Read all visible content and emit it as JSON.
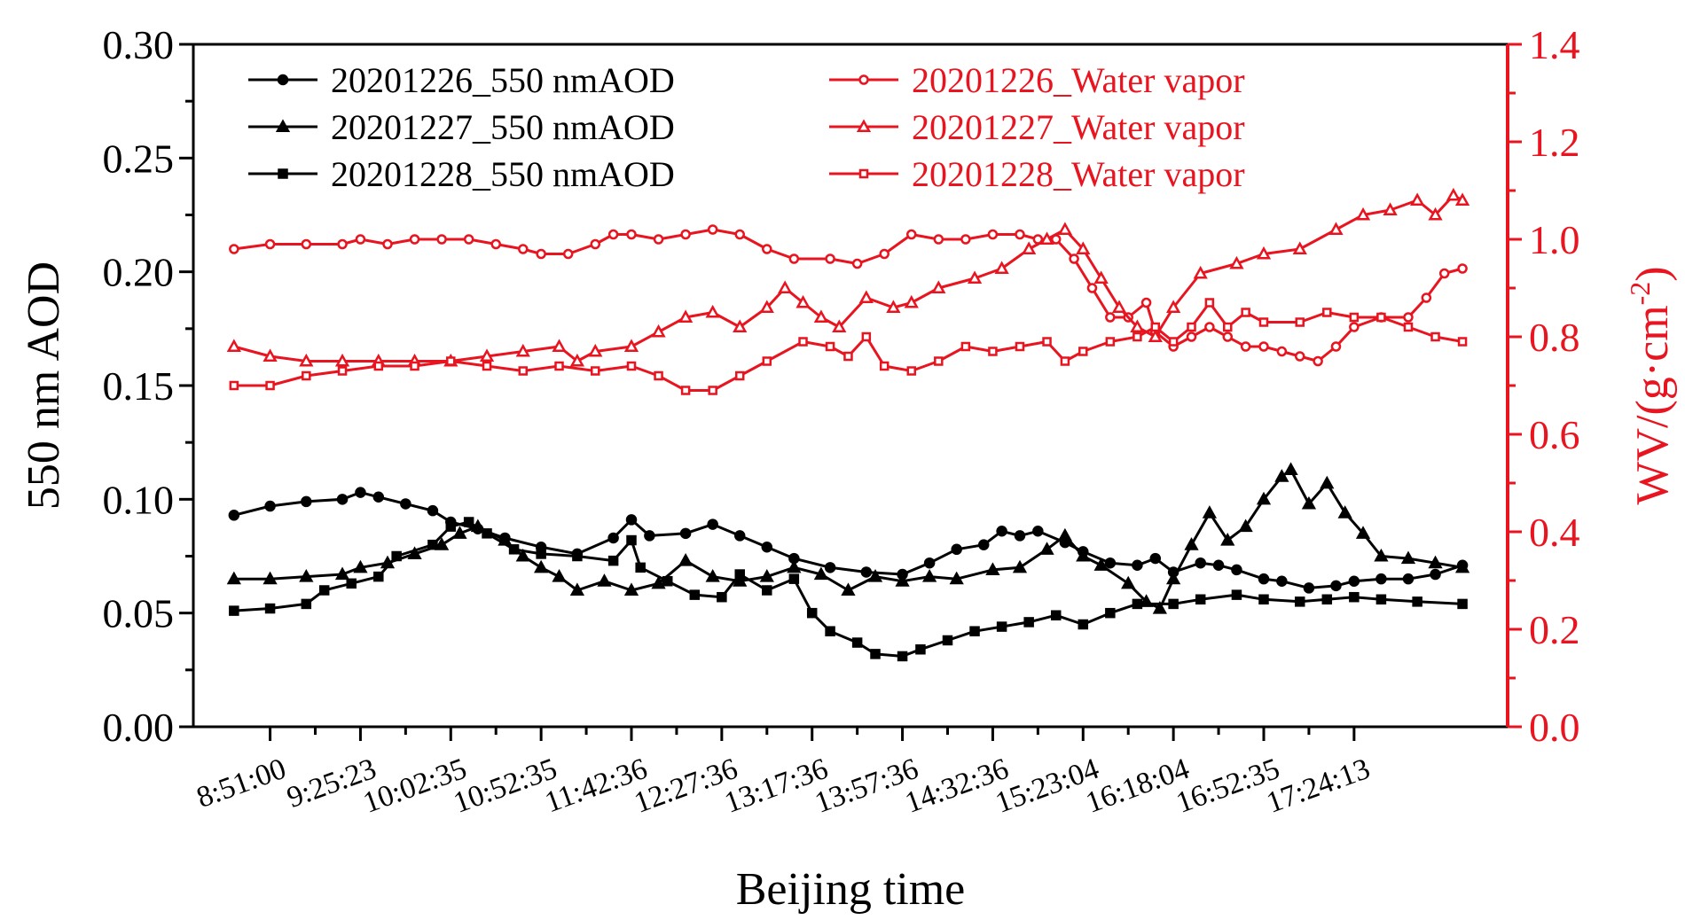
{
  "chart_data": {
    "type": "line",
    "title": "",
    "xlabel": "Beijing time",
    "ylabel_left": "550 nm AOD",
    "ylabel_right_prefix": "WV/(g",
    "ylabel_right_dot": "·",
    "ylabel_right_mid": "cm",
    "ylabel_right_sup": "-2",
    "ylabel_right_suffix": ")",
    "x_tick_labels": [
      "8:51:00",
      "9:25:23",
      "10:02:35",
      "10:52:35",
      "11:42:36",
      "12:27:36",
      "13:17:36",
      "13:57:36",
      "14:32:36",
      "15:23:04",
      "16:18:04",
      "16:52:35",
      "17:24:13"
    ],
    "y_left_ticks": [
      "0.00",
      "0.05",
      "0.10",
      "0.15",
      "0.20",
      "0.25",
      "0.30"
    ],
    "y_right_ticks": [
      "0.0",
      "0.2",
      "0.4",
      "0.6",
      "0.8",
      "1.0",
      "1.2",
      "1.4"
    ],
    "ylim_left": [
      0,
      0.3
    ],
    "ylim_right": [
      0,
      1.4
    ],
    "xlim": [
      -0.85,
      13.7
    ],
    "legend_position": "top",
    "colors": {
      "aod": "#000000",
      "wv": "#e8141f"
    },
    "series": [
      {
        "name": "20201226_550 nmAOD",
        "axis": "left",
        "marker": "circle",
        "filled": true,
        "color": "#000000",
        "points": [
          [
            -0.4,
            0.093
          ],
          [
            0,
            0.097
          ],
          [
            0.4,
            0.099
          ],
          [
            0.8,
            0.1
          ],
          [
            1,
            0.103
          ],
          [
            1.2,
            0.101
          ],
          [
            1.5,
            0.098
          ],
          [
            1.8,
            0.095
          ],
          [
            2,
            0.09
          ],
          [
            2.3,
            0.087
          ],
          [
            2.6,
            0.083
          ],
          [
            3,
            0.079
          ],
          [
            3.4,
            0.076
          ],
          [
            3.8,
            0.083
          ],
          [
            4,
            0.091
          ],
          [
            4.2,
            0.084
          ],
          [
            4.6,
            0.085
          ],
          [
            4.9,
            0.089
          ],
          [
            5.2,
            0.084
          ],
          [
            5.5,
            0.079
          ],
          [
            5.8,
            0.074
          ],
          [
            6.2,
            0.07
          ],
          [
            6.6,
            0.068
          ],
          [
            7,
            0.067
          ],
          [
            7.3,
            0.072
          ],
          [
            7.6,
            0.078
          ],
          [
            7.9,
            0.08
          ],
          [
            8.1,
            0.086
          ],
          [
            8.3,
            0.084
          ],
          [
            8.5,
            0.086
          ],
          [
            8.8,
            0.081
          ],
          [
            9,
            0.077
          ],
          [
            9.3,
            0.072
          ],
          [
            9.6,
            0.071
          ],
          [
            9.8,
            0.074
          ],
          [
            10,
            0.068
          ],
          [
            10.3,
            0.072
          ],
          [
            10.5,
            0.071
          ],
          [
            10.7,
            0.069
          ],
          [
            11,
            0.065
          ],
          [
            11.2,
            0.064
          ],
          [
            11.5,
            0.061
          ],
          [
            11.8,
            0.062
          ],
          [
            12,
            0.064
          ],
          [
            12.3,
            0.065
          ],
          [
            12.6,
            0.065
          ],
          [
            12.9,
            0.067
          ],
          [
            13.2,
            0.071
          ]
        ]
      },
      {
        "name": "20201227_550 nmAOD",
        "axis": "left",
        "marker": "triangle",
        "filled": true,
        "color": "#000000",
        "points": [
          [
            -0.4,
            0.065
          ],
          [
            0,
            0.065
          ],
          [
            0.4,
            0.066
          ],
          [
            0.8,
            0.067
          ],
          [
            1,
            0.07
          ],
          [
            1.3,
            0.072
          ],
          [
            1.6,
            0.076
          ],
          [
            1.9,
            0.08
          ],
          [
            2.1,
            0.085
          ],
          [
            2.3,
            0.088
          ],
          [
            2.6,
            0.082
          ],
          [
            2.8,
            0.075
          ],
          [
            3,
            0.07
          ],
          [
            3.2,
            0.066
          ],
          [
            3.4,
            0.06
          ],
          [
            3.7,
            0.064
          ],
          [
            4,
            0.06
          ],
          [
            4.3,
            0.063
          ],
          [
            4.6,
            0.073
          ],
          [
            4.9,
            0.066
          ],
          [
            5.2,
            0.064
          ],
          [
            5.5,
            0.066
          ],
          [
            5.8,
            0.07
          ],
          [
            6.1,
            0.067
          ],
          [
            6.4,
            0.06
          ],
          [
            6.7,
            0.066
          ],
          [
            7,
            0.064
          ],
          [
            7.3,
            0.066
          ],
          [
            7.6,
            0.065
          ],
          [
            8,
            0.069
          ],
          [
            8.3,
            0.07
          ],
          [
            8.6,
            0.078
          ],
          [
            8.8,
            0.084
          ],
          [
            9,
            0.075
          ],
          [
            9.2,
            0.071
          ],
          [
            9.5,
            0.063
          ],
          [
            9.7,
            0.055
          ],
          [
            9.85,
            0.052
          ],
          [
            10,
            0.065
          ],
          [
            10.2,
            0.08
          ],
          [
            10.4,
            0.094
          ],
          [
            10.6,
            0.082
          ],
          [
            10.8,
            0.088
          ],
          [
            11,
            0.1
          ],
          [
            11.2,
            0.11
          ],
          [
            11.3,
            0.113
          ],
          [
            11.5,
            0.098
          ],
          [
            11.7,
            0.107
          ],
          [
            11.9,
            0.094
          ],
          [
            12.1,
            0.085
          ],
          [
            12.3,
            0.075
          ],
          [
            12.6,
            0.074
          ],
          [
            12.9,
            0.072
          ],
          [
            13.2,
            0.07
          ]
        ]
      },
      {
        "name": "20201228_550 nmAOD",
        "axis": "left",
        "marker": "square",
        "filled": true,
        "color": "#000000",
        "points": [
          [
            -0.4,
            0.051
          ],
          [
            0,
            0.052
          ],
          [
            0.4,
            0.054
          ],
          [
            0.6,
            0.06
          ],
          [
            0.9,
            0.063
          ],
          [
            1.2,
            0.066
          ],
          [
            1.4,
            0.075
          ],
          [
            1.8,
            0.08
          ],
          [
            2,
            0.088
          ],
          [
            2.2,
            0.09
          ],
          [
            2.4,
            0.085
          ],
          [
            2.7,
            0.078
          ],
          [
            3,
            0.076
          ],
          [
            3.4,
            0.075
          ],
          [
            3.8,
            0.073
          ],
          [
            4,
            0.082
          ],
          [
            4.1,
            0.07
          ],
          [
            4.4,
            0.064
          ],
          [
            4.7,
            0.058
          ],
          [
            5,
            0.057
          ],
          [
            5.2,
            0.067
          ],
          [
            5.5,
            0.06
          ],
          [
            5.8,
            0.065
          ],
          [
            6,
            0.05
          ],
          [
            6.2,
            0.042
          ],
          [
            6.5,
            0.037
          ],
          [
            6.7,
            0.032
          ],
          [
            7,
            0.031
          ],
          [
            7.2,
            0.034
          ],
          [
            7.5,
            0.038
          ],
          [
            7.8,
            0.042
          ],
          [
            8.1,
            0.044
          ],
          [
            8.4,
            0.046
          ],
          [
            8.7,
            0.049
          ],
          [
            9,
            0.045
          ],
          [
            9.3,
            0.05
          ],
          [
            9.6,
            0.054
          ],
          [
            10,
            0.054
          ],
          [
            10.3,
            0.056
          ],
          [
            10.7,
            0.058
          ],
          [
            11,
            0.056
          ],
          [
            11.4,
            0.055
          ],
          [
            11.7,
            0.056
          ],
          [
            12,
            0.057
          ],
          [
            12.3,
            0.056
          ],
          [
            12.7,
            0.055
          ],
          [
            13.2,
            0.054
          ]
        ]
      },
      {
        "name": "20201226_Water vapor",
        "axis": "right",
        "marker": "circle",
        "filled": false,
        "color": "#e8141f",
        "points": [
          [
            -0.4,
            0.98
          ],
          [
            0,
            0.99
          ],
          [
            0.4,
            0.99
          ],
          [
            0.8,
            0.99
          ],
          [
            1,
            1.0
          ],
          [
            1.3,
            0.99
          ],
          [
            1.6,
            1.0
          ],
          [
            1.9,
            1.0
          ],
          [
            2.2,
            1.0
          ],
          [
            2.5,
            0.99
          ],
          [
            2.8,
            0.98
          ],
          [
            3,
            0.97
          ],
          [
            3.3,
            0.97
          ],
          [
            3.6,
            0.99
          ],
          [
            3.8,
            1.01
          ],
          [
            4,
            1.01
          ],
          [
            4.3,
            1.0
          ],
          [
            4.6,
            1.01
          ],
          [
            4.9,
            1.02
          ],
          [
            5.2,
            1.01
          ],
          [
            5.5,
            0.98
          ],
          [
            5.8,
            0.96
          ],
          [
            6.2,
            0.96
          ],
          [
            6.5,
            0.95
          ],
          [
            6.8,
            0.97
          ],
          [
            7.1,
            1.01
          ],
          [
            7.4,
            1.0
          ],
          [
            7.7,
            1.0
          ],
          [
            8,
            1.01
          ],
          [
            8.3,
            1.01
          ],
          [
            8.5,
            1.0
          ],
          [
            8.7,
            1.0
          ],
          [
            8.9,
            0.96
          ],
          [
            9.1,
            0.9
          ],
          [
            9.3,
            0.84
          ],
          [
            9.5,
            0.84
          ],
          [
            9.7,
            0.87
          ],
          [
            9.8,
            0.81
          ],
          [
            10,
            0.78
          ],
          [
            10.2,
            0.8
          ],
          [
            10.4,
            0.82
          ],
          [
            10.6,
            0.8
          ],
          [
            10.8,
            0.78
          ],
          [
            11,
            0.78
          ],
          [
            11.2,
            0.77
          ],
          [
            11.4,
            0.76
          ],
          [
            11.6,
            0.75
          ],
          [
            11.8,
            0.78
          ],
          [
            12,
            0.82
          ],
          [
            12.3,
            0.84
          ],
          [
            12.6,
            0.84
          ],
          [
            12.8,
            0.88
          ],
          [
            13.0,
            0.93
          ],
          [
            13.2,
            0.94
          ]
        ]
      },
      {
        "name": "20201227_Water vapor",
        "axis": "right",
        "marker": "triangle",
        "filled": false,
        "color": "#e8141f",
        "points": [
          [
            -0.4,
            0.78
          ],
          [
            0,
            0.76
          ],
          [
            0.4,
            0.75
          ],
          [
            0.8,
            0.75
          ],
          [
            1.2,
            0.75
          ],
          [
            1.6,
            0.75
          ],
          [
            2,
            0.75
          ],
          [
            2.4,
            0.76
          ],
          [
            2.8,
            0.77
          ],
          [
            3.2,
            0.78
          ],
          [
            3.4,
            0.75
          ],
          [
            3.6,
            0.77
          ],
          [
            4,
            0.78
          ],
          [
            4.3,
            0.81
          ],
          [
            4.6,
            0.84
          ],
          [
            4.9,
            0.85
          ],
          [
            5.2,
            0.82
          ],
          [
            5.5,
            0.86
          ],
          [
            5.7,
            0.9
          ],
          [
            5.9,
            0.87
          ],
          [
            6.1,
            0.84
          ],
          [
            6.3,
            0.82
          ],
          [
            6.6,
            0.88
          ],
          [
            6.9,
            0.86
          ],
          [
            7.1,
            0.87
          ],
          [
            7.4,
            0.9
          ],
          [
            7.8,
            0.92
          ],
          [
            8.1,
            0.94
          ],
          [
            8.4,
            0.98
          ],
          [
            8.6,
            1.0
          ],
          [
            8.8,
            1.02
          ],
          [
            9,
            0.98
          ],
          [
            9.2,
            0.92
          ],
          [
            9.4,
            0.86
          ],
          [
            9.6,
            0.82
          ],
          [
            9.8,
            0.8
          ],
          [
            10,
            0.86
          ],
          [
            10.3,
            0.93
          ],
          [
            10.7,
            0.95
          ],
          [
            11,
            0.97
          ],
          [
            11.4,
            0.98
          ],
          [
            11.8,
            1.02
          ],
          [
            12.1,
            1.05
          ],
          [
            12.4,
            1.06
          ],
          [
            12.7,
            1.08
          ],
          [
            12.9,
            1.05
          ],
          [
            13.1,
            1.09
          ],
          [
            13.2,
            1.08
          ]
        ]
      },
      {
        "name": "20201228_Water vapor",
        "axis": "right",
        "marker": "square",
        "filled": false,
        "color": "#e8141f",
        "points": [
          [
            -0.4,
            0.7
          ],
          [
            0,
            0.7
          ],
          [
            0.4,
            0.72
          ],
          [
            0.8,
            0.73
          ],
          [
            1.2,
            0.74
          ],
          [
            1.6,
            0.74
          ],
          [
            2,
            0.75
          ],
          [
            2.4,
            0.74
          ],
          [
            2.8,
            0.73
          ],
          [
            3.2,
            0.74
          ],
          [
            3.6,
            0.73
          ],
          [
            4,
            0.74
          ],
          [
            4.3,
            0.72
          ],
          [
            4.6,
            0.69
          ],
          [
            4.9,
            0.69
          ],
          [
            5.2,
            0.72
          ],
          [
            5.5,
            0.75
          ],
          [
            5.9,
            0.79
          ],
          [
            6.2,
            0.78
          ],
          [
            6.4,
            0.76
          ],
          [
            6.6,
            0.8
          ],
          [
            6.8,
            0.74
          ],
          [
            7.1,
            0.73
          ],
          [
            7.4,
            0.75
          ],
          [
            7.7,
            0.78
          ],
          [
            8,
            0.77
          ],
          [
            8.3,
            0.78
          ],
          [
            8.6,
            0.79
          ],
          [
            8.8,
            0.75
          ],
          [
            9,
            0.77
          ],
          [
            9.3,
            0.79
          ],
          [
            9.6,
            0.8
          ],
          [
            9.8,
            0.82
          ],
          [
            10,
            0.79
          ],
          [
            10.2,
            0.82
          ],
          [
            10.4,
            0.87
          ],
          [
            10.6,
            0.82
          ],
          [
            10.8,
            0.85
          ],
          [
            11,
            0.83
          ],
          [
            11.4,
            0.83
          ],
          [
            11.7,
            0.85
          ],
          [
            12,
            0.84
          ],
          [
            12.3,
            0.84
          ],
          [
            12.6,
            0.82
          ],
          [
            12.9,
            0.8
          ],
          [
            13.2,
            0.79
          ]
        ]
      }
    ]
  }
}
